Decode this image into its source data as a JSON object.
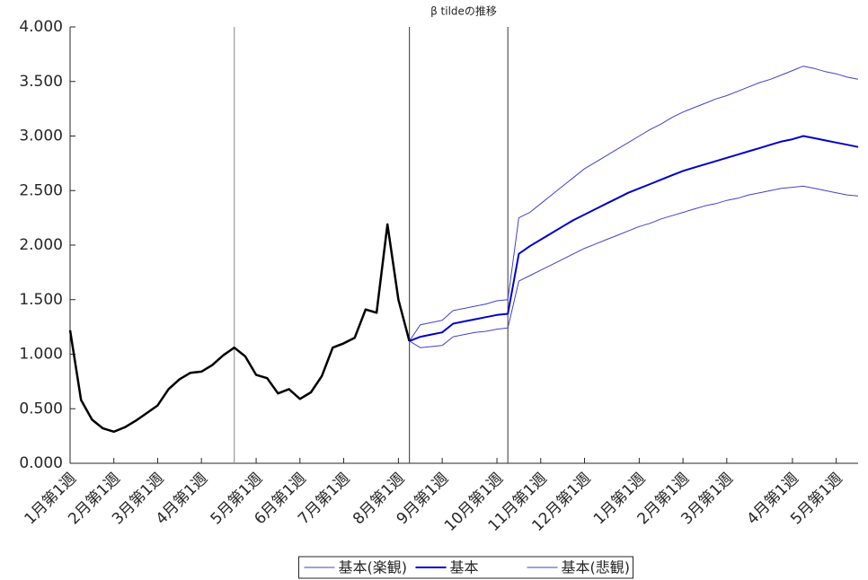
{
  "chart_data": {
    "type": "line",
    "title": "β tildeの推移",
    "categories": [
      "1月第1週",
      null,
      null,
      null,
      "2月第1週",
      null,
      null,
      null,
      "3月第1週",
      null,
      null,
      null,
      "4月第1週",
      null,
      null,
      null,
      null,
      "5月第1週",
      null,
      null,
      null,
      "6月第1週",
      null,
      null,
      null,
      "7月第1週",
      null,
      null,
      null,
      null,
      "8月第1週",
      null,
      null,
      null,
      "9月第1週",
      null,
      null,
      null,
      null,
      "10月第1週",
      null,
      null,
      null,
      "11月第1週",
      null,
      null,
      null,
      "12月第1週",
      null,
      null,
      null,
      null,
      "1月第1週",
      null,
      null,
      null,
      "2月第1週",
      null,
      null,
      null,
      "3月第1週",
      null,
      null,
      null,
      null,
      null,
      "4月第1週",
      null,
      null,
      null,
      "5月第1週",
      null,
      null
    ],
    "series": [
      {
        "color": "#000000",
        "width": 2.5,
        "values": [
          1.22,
          0.58,
          0.4,
          0.32,
          0.29,
          0.33,
          0.39,
          0.46,
          0.53,
          0.68,
          0.77,
          0.83,
          0.84,
          0.9,
          0.99,
          1.06,
          0.98,
          0.81,
          0.78,
          0.64,
          0.68,
          0.59,
          0.65,
          0.8,
          1.06,
          1.1,
          1.15,
          1.41,
          1.38,
          2.19,
          1.5,
          1.12,
          null,
          null,
          null,
          null,
          null,
          null,
          null,
          null,
          null,
          null,
          null,
          null,
          null,
          null,
          null,
          null,
          null,
          null,
          null,
          null,
          null,
          null,
          null,
          null,
          null,
          null,
          null,
          null,
          null,
          null,
          null,
          null,
          null,
          null,
          null,
          null,
          null,
          null,
          null,
          null,
          null
        ]
      },
      {
        "name": "基本(楽観)",
        "color": "#4040d0",
        "width": 1,
        "values": [
          null,
          null,
          null,
          null,
          null,
          null,
          null,
          null,
          null,
          null,
          null,
          null,
          null,
          null,
          null,
          null,
          null,
          null,
          null,
          null,
          null,
          null,
          null,
          null,
          null,
          null,
          null,
          null,
          null,
          null,
          null,
          1.12,
          1.27,
          1.29,
          1.31,
          1.4,
          1.42,
          1.44,
          1.46,
          1.49,
          1.5,
          2.25,
          2.3,
          2.38,
          2.46,
          2.54,
          2.62,
          2.7,
          2.76,
          2.82,
          2.88,
          2.94,
          3.0,
          3.06,
          3.11,
          3.17,
          3.22,
          3.26,
          3.3,
          3.34,
          3.37,
          3.41,
          3.45,
          3.49,
          3.52,
          3.56,
          3.6,
          3.64,
          3.62,
          3.59,
          3.57,
          3.54,
          3.52
        ]
      },
      {
        "name": "基本",
        "color": "#0000cc",
        "width": 2,
        "values": [
          null,
          null,
          null,
          null,
          null,
          null,
          null,
          null,
          null,
          null,
          null,
          null,
          null,
          null,
          null,
          null,
          null,
          null,
          null,
          null,
          null,
          null,
          null,
          null,
          null,
          null,
          null,
          null,
          null,
          null,
          null,
          1.12,
          1.16,
          1.18,
          1.2,
          1.28,
          1.3,
          1.32,
          1.34,
          1.36,
          1.37,
          1.92,
          1.99,
          2.05,
          2.11,
          2.17,
          2.23,
          2.28,
          2.33,
          2.38,
          2.43,
          2.48,
          2.52,
          2.56,
          2.6,
          2.64,
          2.68,
          2.71,
          2.74,
          2.77,
          2.8,
          2.83,
          2.86,
          2.89,
          2.92,
          2.95,
          2.97,
          3.0,
          2.98,
          2.96,
          2.94,
          2.92,
          2.9
        ]
      },
      {
        "name": "基本(悲観)",
        "color": "#4040d0",
        "width": 1,
        "values": [
          null,
          null,
          null,
          null,
          null,
          null,
          null,
          null,
          null,
          null,
          null,
          null,
          null,
          null,
          null,
          null,
          null,
          null,
          null,
          null,
          null,
          null,
          null,
          null,
          null,
          null,
          null,
          null,
          null,
          null,
          null,
          1.12,
          1.06,
          1.07,
          1.08,
          1.16,
          1.18,
          1.2,
          1.21,
          1.23,
          1.24,
          1.67,
          1.72,
          1.77,
          1.82,
          1.87,
          1.92,
          1.97,
          2.01,
          2.05,
          2.09,
          2.13,
          2.17,
          2.2,
          2.24,
          2.27,
          2.3,
          2.33,
          2.36,
          2.38,
          2.41,
          2.43,
          2.46,
          2.48,
          2.5,
          2.52,
          2.53,
          2.54,
          2.52,
          2.5,
          2.48,
          2.46,
          2.45
        ]
      }
    ],
    "vlines": [
      {
        "at": 15,
        "color": "#9a9a9a"
      },
      {
        "at": 31,
        "color": "#555555"
      },
      {
        "at": 40,
        "color": "#555555"
      }
    ],
    "ylim": [
      0,
      4
    ],
    "yticks": [
      {
        "value": 0,
        "label": "0.000"
      },
      {
        "value": 0.5,
        "label": "0.500"
      },
      {
        "value": 1,
        "label": "1.000"
      },
      {
        "value": 1.5,
        "label": "1.500"
      },
      {
        "value": 2,
        "label": "2.000"
      },
      {
        "value": 2.5,
        "label": "2.500"
      },
      {
        "value": 3,
        "label": "3.000"
      },
      {
        "value": 3.5,
        "label": "3.500"
      },
      {
        "value": 4,
        "label": "4.000"
      }
    ],
    "legend": "bottom"
  }
}
